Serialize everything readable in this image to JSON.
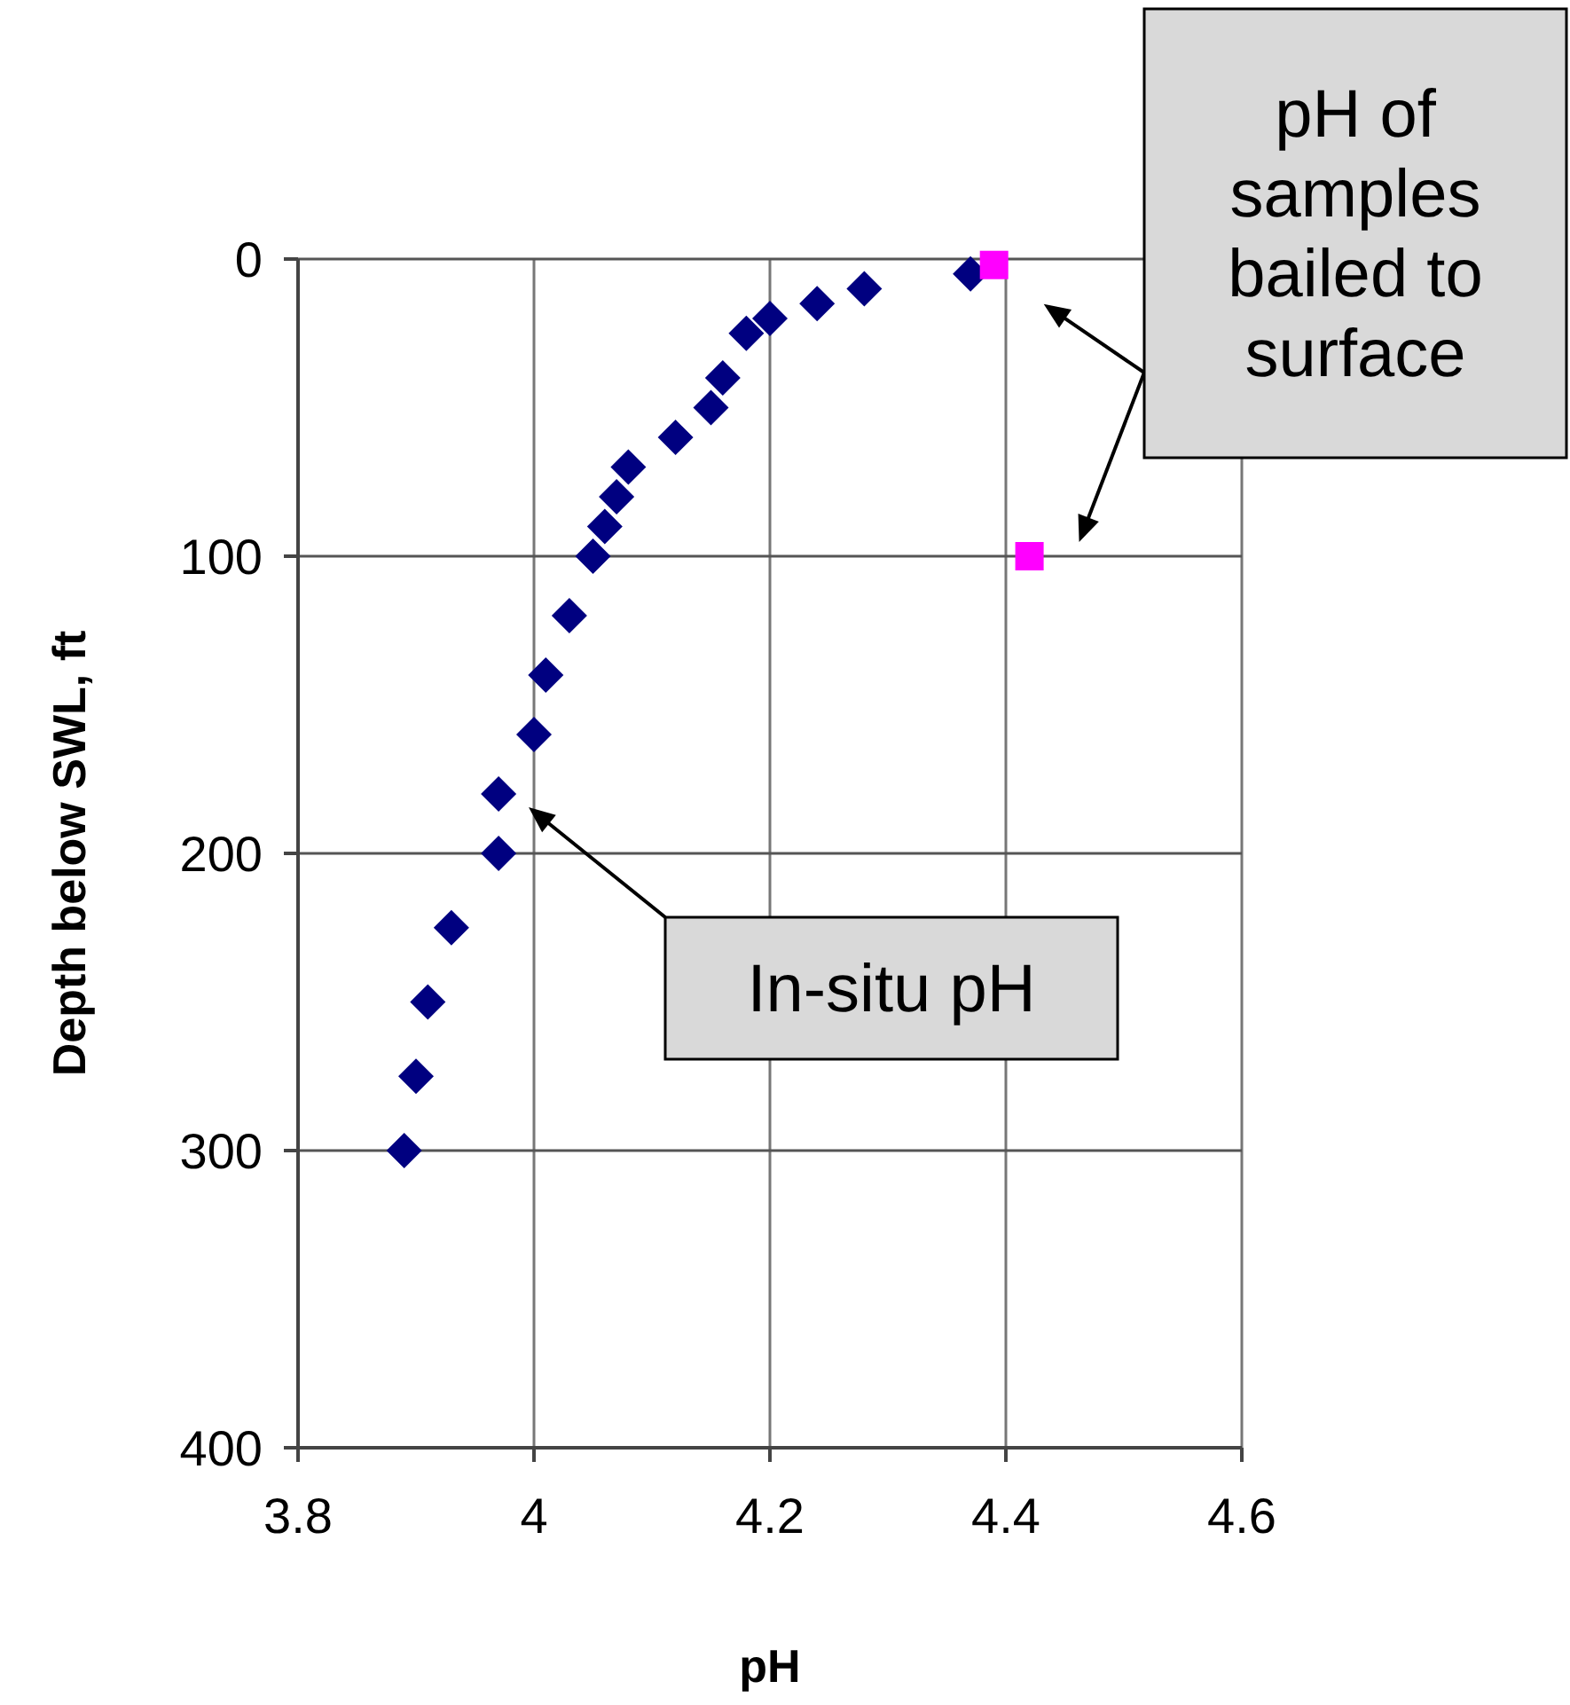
{
  "chart_data": {
    "type": "scatter",
    "xlabel": "pH",
    "ylabel": "Depth below SWL, ft",
    "xlim": [
      3.8,
      4.6
    ],
    "xticks": [
      3.8,
      4,
      4.2,
      4.4,
      4.6
    ],
    "ylim": [
      400,
      0
    ],
    "yticks": [
      0,
      100,
      200,
      300,
      400
    ],
    "grid": true,
    "series": [
      {
        "color": "#000080",
        "marker": "diamond",
        "x": [
          4.37,
          4.28,
          4.24,
          4.2,
          4.18,
          4.16,
          4.15,
          4.12,
          4.08,
          4.07,
          4.06,
          4.05,
          4.03,
          4.01,
          4.0,
          3.97,
          3.97,
          3.93,
          3.91,
          3.9,
          3.89
        ],
        "values": [
          5,
          10,
          15,
          20,
          25,
          40,
          50,
          60,
          70,
          80,
          90,
          100,
          120,
          140,
          160,
          180,
          200,
          225,
          250,
          275,
          300
        ]
      },
      {
        "color": "#ff00ff",
        "marker": "square",
        "x": [
          4.39,
          4.42
        ],
        "values": [
          2,
          100
        ]
      }
    ],
    "annotations": [
      "pH of samples bailed to surface",
      "In-situ pH"
    ]
  }
}
